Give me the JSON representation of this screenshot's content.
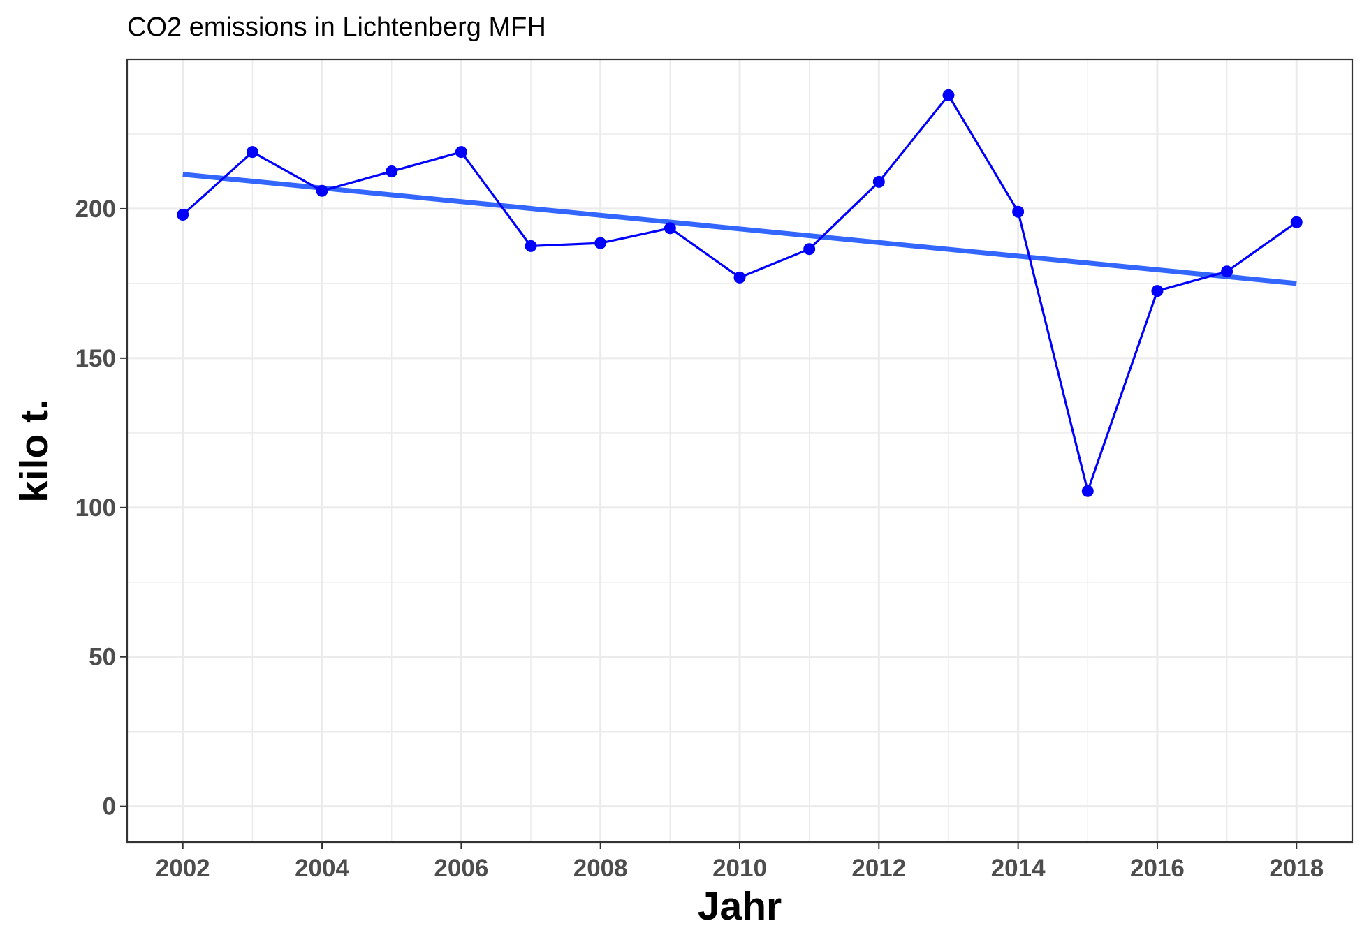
{
  "chart_data": {
    "type": "line",
    "title": "CO2 emissions in Lichtenberg MFH",
    "xlabel": "Jahr",
    "ylabel": "kilo t.",
    "x": [
      2002,
      2003,
      2004,
      2005,
      2006,
      2007,
      2008,
      2009,
      2010,
      2011,
      2012,
      2013,
      2014,
      2015,
      2016,
      2017,
      2018
    ],
    "series": [
      {
        "values": [
          198,
          219,
          206,
          212.5,
          219,
          187.5,
          188.5,
          193.5,
          177,
          186.5,
          209,
          238,
          199,
          105.5,
          172.5,
          179,
          195.5
        ],
        "color": "#0000ff",
        "markers": true
      }
    ],
    "trend_line": {
      "type": "linear-fit",
      "start": [
        2002,
        211.5
      ],
      "end": [
        2018,
        175
      ],
      "color": "#3366ff"
    },
    "xlim": [
      2001.2,
      2018.8
    ],
    "ylim": [
      -12,
      250
    ],
    "x_ticks": [
      2002,
      2004,
      2006,
      2008,
      2010,
      2012,
      2014,
      2016,
      2018
    ],
    "x_tick_labels": [
      "2002",
      "2004",
      "2006",
      "2008",
      "2010",
      "2012",
      "2014",
      "2016",
      "2018"
    ],
    "y_ticks": [
      0,
      50,
      100,
      150,
      200
    ],
    "y_tick_labels": [
      "0",
      "50",
      "100",
      "150",
      "200"
    ],
    "grid": true,
    "legend": "none"
  }
}
